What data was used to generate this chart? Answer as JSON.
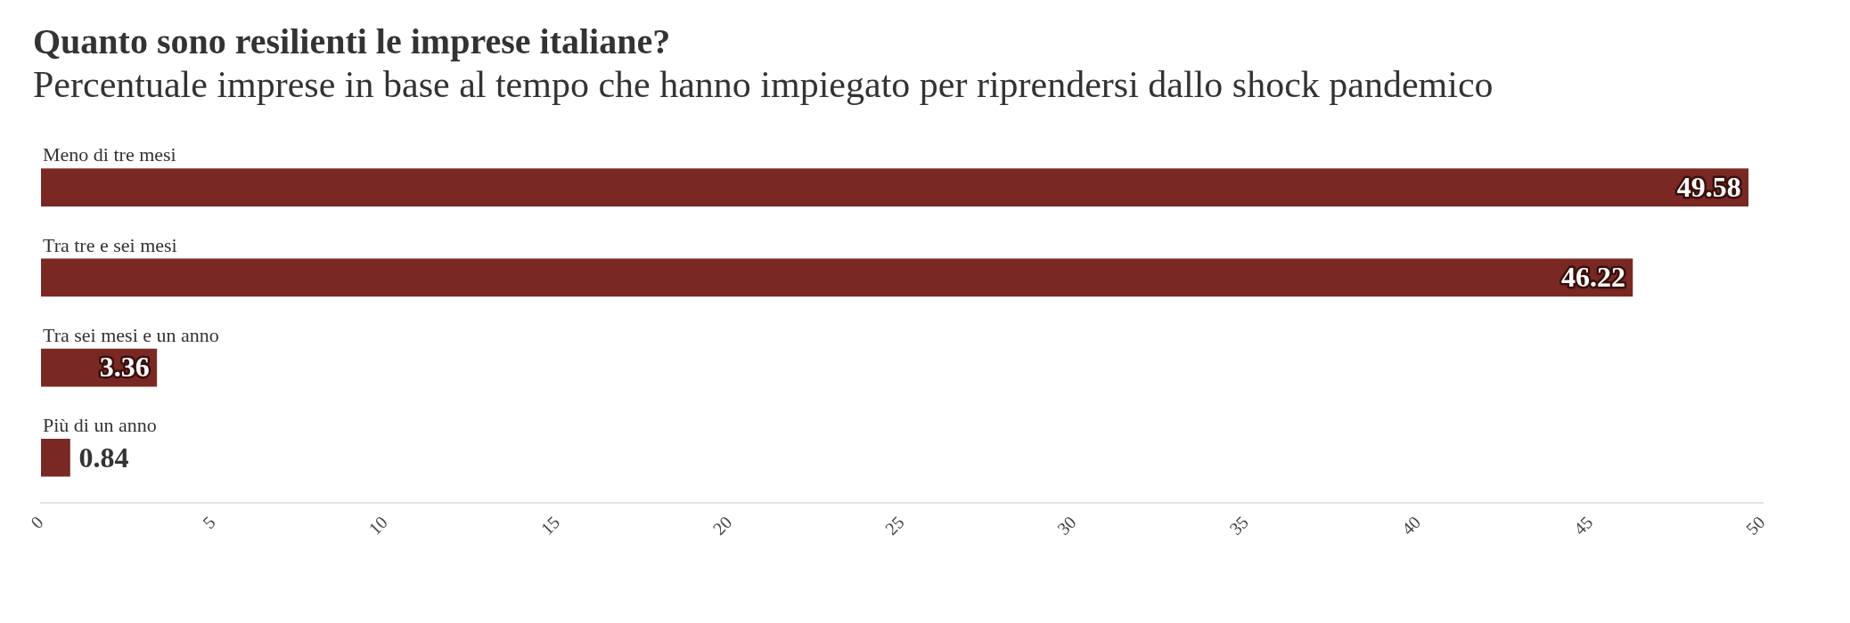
{
  "chart_data": {
    "type": "bar",
    "orientation": "horizontal",
    "title": "Quanto sono resilienti le imprese italiane?",
    "subtitle": "Percentuale imprese in base al tempo che hanno impiegato per riprendersi dallo shock pandemico",
    "categories": [
      "Meno di tre mesi",
      "Tra tre e sei mesi",
      "Tra sei mesi e un anno",
      "Più di un anno"
    ],
    "values": [
      49.58,
      46.22,
      3.36,
      0.84
    ],
    "color": "#7a2823",
    "xlim": [
      0,
      50
    ],
    "xticks": [
      0,
      5,
      10,
      15,
      20,
      25,
      30,
      35,
      40,
      45,
      50
    ],
    "grid": false,
    "legend": false,
    "data_labels": true
  }
}
